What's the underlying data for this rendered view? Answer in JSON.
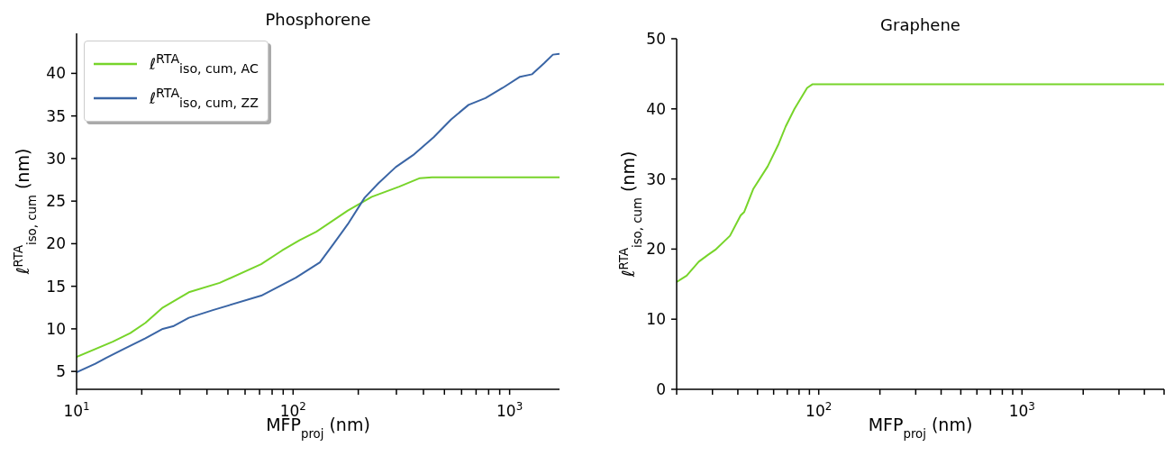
{
  "chart_data": [
    {
      "type": "line",
      "title": "Phosphorene",
      "xlabel": "MFP$_{proj}$ (nm)",
      "ylabel": "ℓ$^{RTA}$$_{iso, cum}$ (nm)",
      "log": "x",
      "xlim": [
        10,
        1700
      ],
      "ylim": [
        2.9,
        44.7
      ],
      "xticks": [
        {
          "value": 10,
          "label": "10$^{1}$"
        },
        {
          "value": 20,
          "label": null
        },
        {
          "value": 30,
          "label": null
        },
        {
          "value": 40,
          "label": null
        },
        {
          "value": 50,
          "label": null
        },
        {
          "value": 60,
          "label": null
        },
        {
          "value": 70,
          "label": null
        },
        {
          "value": 80,
          "label": null
        },
        {
          "value": 90,
          "label": null
        },
        {
          "value": 100,
          "label": "10$^{2}$"
        },
        {
          "value": 200,
          "label": null
        },
        {
          "value": 300,
          "label": null
        },
        {
          "value": 400,
          "label": null
        },
        {
          "value": 500,
          "label": null
        },
        {
          "value": 600,
          "label": null
        },
        {
          "value": 700,
          "label": null
        },
        {
          "value": 800,
          "label": null
        },
        {
          "value": 900,
          "label": null
        },
        {
          "value": 1000,
          "label": "10$^{3}$"
        }
      ],
      "yticks": [
        5,
        10,
        15,
        20,
        25,
        30,
        35,
        40
      ],
      "grid": false,
      "legend": "top left",
      "series": [
        {
          "name": "ℓ$^{RTA}$$_{iso, cum, AC}$",
          "color": "#77d42a",
          "x": [
            10,
            14.7,
            17.7,
            20.8,
            25,
            33,
            45.8,
            71.2,
            88.9,
            107,
            128,
            179,
            231,
            309,
            385,
            438,
            1700
          ],
          "values": [
            6.7,
            8.5,
            9.5,
            10.7,
            12.5,
            14.3,
            15.4,
            17.6,
            19.2,
            20.4,
            21.4,
            23.9,
            25.5,
            26.7,
            27.7,
            27.8,
            27.8
          ]
        },
        {
          "name": "ℓ$^{RTA}$$_{iso, cum, ZZ}$",
          "color": "#3a65a5",
          "x": [
            10,
            12.2,
            13.7,
            16.4,
            20.8,
            25,
            27.9,
            33,
            42.6,
            71.3,
            103,
            133,
            154,
            179,
            214,
            248,
            298,
            358,
            446,
            537,
            646,
            773,
            929,
            1117,
            1271,
            1445,
            1585,
            1700
          ],
          "values": [
            4.9,
            5.9,
            6.6,
            7.6,
            8.9,
            10,
            10.3,
            11.3,
            12.2,
            13.9,
            16,
            17.8,
            20,
            22.3,
            25.4,
            27.1,
            29,
            30.4,
            32.5,
            34.6,
            36.3,
            37.1,
            38.3,
            39.6,
            39.9,
            41.2,
            42.2,
            42.3
          ]
        }
      ]
    },
    {
      "type": "line",
      "title": "Graphene",
      "xlabel": "MFP$_{proj}$ (nm)",
      "ylabel": "ℓ$^{RTA}$$_{iso, cum}$ (nm)",
      "log": "x",
      "xlim": [
        20,
        5000
      ],
      "ylim": [
        0,
        50
      ],
      "xticks": [
        {
          "value": 20,
          "label": null
        },
        {
          "value": 30,
          "label": null
        },
        {
          "value": 40,
          "label": null
        },
        {
          "value": 50,
          "label": null
        },
        {
          "value": 60,
          "label": null
        },
        {
          "value": 70,
          "label": null
        },
        {
          "value": 80,
          "label": null
        },
        {
          "value": 90,
          "label": null
        },
        {
          "value": 100,
          "label": "10$^{2}$"
        },
        {
          "value": 200,
          "label": null
        },
        {
          "value": 300,
          "label": null
        },
        {
          "value": 400,
          "label": null
        },
        {
          "value": 500,
          "label": null
        },
        {
          "value": 600,
          "label": null
        },
        {
          "value": 700,
          "label": null
        },
        {
          "value": 800,
          "label": null
        },
        {
          "value": 900,
          "label": null
        },
        {
          "value": 1000,
          "label": "10$^{3}$"
        },
        {
          "value": 2000,
          "label": null
        },
        {
          "value": 3000,
          "label": null
        },
        {
          "value": 4000,
          "label": null
        },
        {
          "value": 5000,
          "label": null
        }
      ],
      "yticks": [
        0,
        10,
        20,
        30,
        40,
        50
      ],
      "grid": false,
      "series": [
        {
          "color": "#77d42a",
          "x": [
            20,
            22.4,
            25.7,
            28.6,
            31,
            36.6,
            41.3,
            43,
            47.7,
            56.1,
            63.5,
            68.8,
            76,
            87.7,
            93,
            5000
          ],
          "values": [
            15.3,
            16.2,
            18.2,
            19.2,
            19.9,
            21.9,
            24.8,
            25.3,
            28.6,
            31.8,
            35,
            37.5,
            40,
            43,
            43.5,
            43.5
          ]
        }
      ]
    }
  ]
}
